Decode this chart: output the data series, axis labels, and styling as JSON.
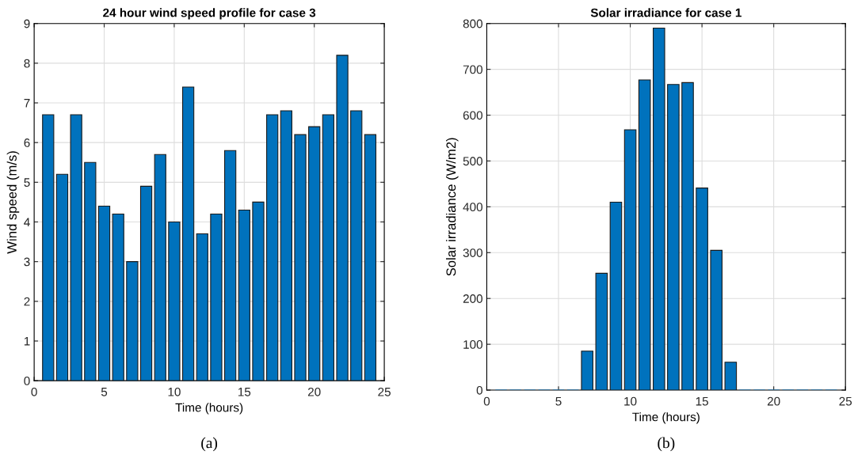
{
  "chart_data": [
    {
      "type": "bar",
      "title": "24 hour wind speed profile for case 3",
      "xlabel": "Time (hours)",
      "ylabel": "Wind speed (m/s)",
      "annotations": [
        "(a)"
      ],
      "x": [
        1,
        2,
        3,
        4,
        5,
        6,
        7,
        8,
        9,
        10,
        11,
        12,
        13,
        14,
        15,
        16,
        17,
        18,
        19,
        20,
        21,
        22,
        23,
        24
      ],
      "values": [
        6.7,
        5.2,
        6.7,
        5.5,
        4.4,
        4.2,
        3.0,
        4.9,
        5.7,
        4.0,
        7.4,
        3.7,
        4.2,
        5.8,
        4.3,
        4.5,
        6.7,
        6.8,
        6.2,
        6.4,
        6.7,
        8.2,
        6.8,
        6.2
      ],
      "color": "#0072bd",
      "xlim": [
        0,
        25
      ],
      "xticks": [
        0,
        5,
        10,
        15,
        20,
        25
      ],
      "ylim": [
        0,
        9
      ],
      "yticks": [
        0,
        1,
        2,
        3,
        4,
        5,
        6,
        7,
        8,
        9
      ],
      "grid": true
    },
    {
      "type": "bar",
      "title": "Solar irradiance for case 1",
      "xlabel": "Time (hours)",
      "ylabel": "Solar irradiance (W/m2)",
      "annotations": [
        "(b)"
      ],
      "x": [
        1,
        2,
        3,
        4,
        5,
        6,
        7,
        8,
        9,
        10,
        11,
        12,
        13,
        14,
        15,
        16,
        17,
        18,
        19,
        20,
        21,
        22,
        23,
        24
      ],
      "values": [
        0,
        0,
        0,
        0,
        0,
        0,
        85,
        255,
        410,
        568,
        677,
        790,
        667,
        671,
        441,
        305,
        61,
        0,
        0,
        0,
        0,
        0,
        0,
        0
      ],
      "color": "#0072bd",
      "xlim": [
        0,
        25
      ],
      "xticks": [
        0,
        5,
        10,
        15,
        20,
        25
      ],
      "ylim": [
        0,
        800
      ],
      "yticks": [
        0,
        100,
        200,
        300,
        400,
        500,
        600,
        700,
        800
      ],
      "grid": true
    }
  ]
}
